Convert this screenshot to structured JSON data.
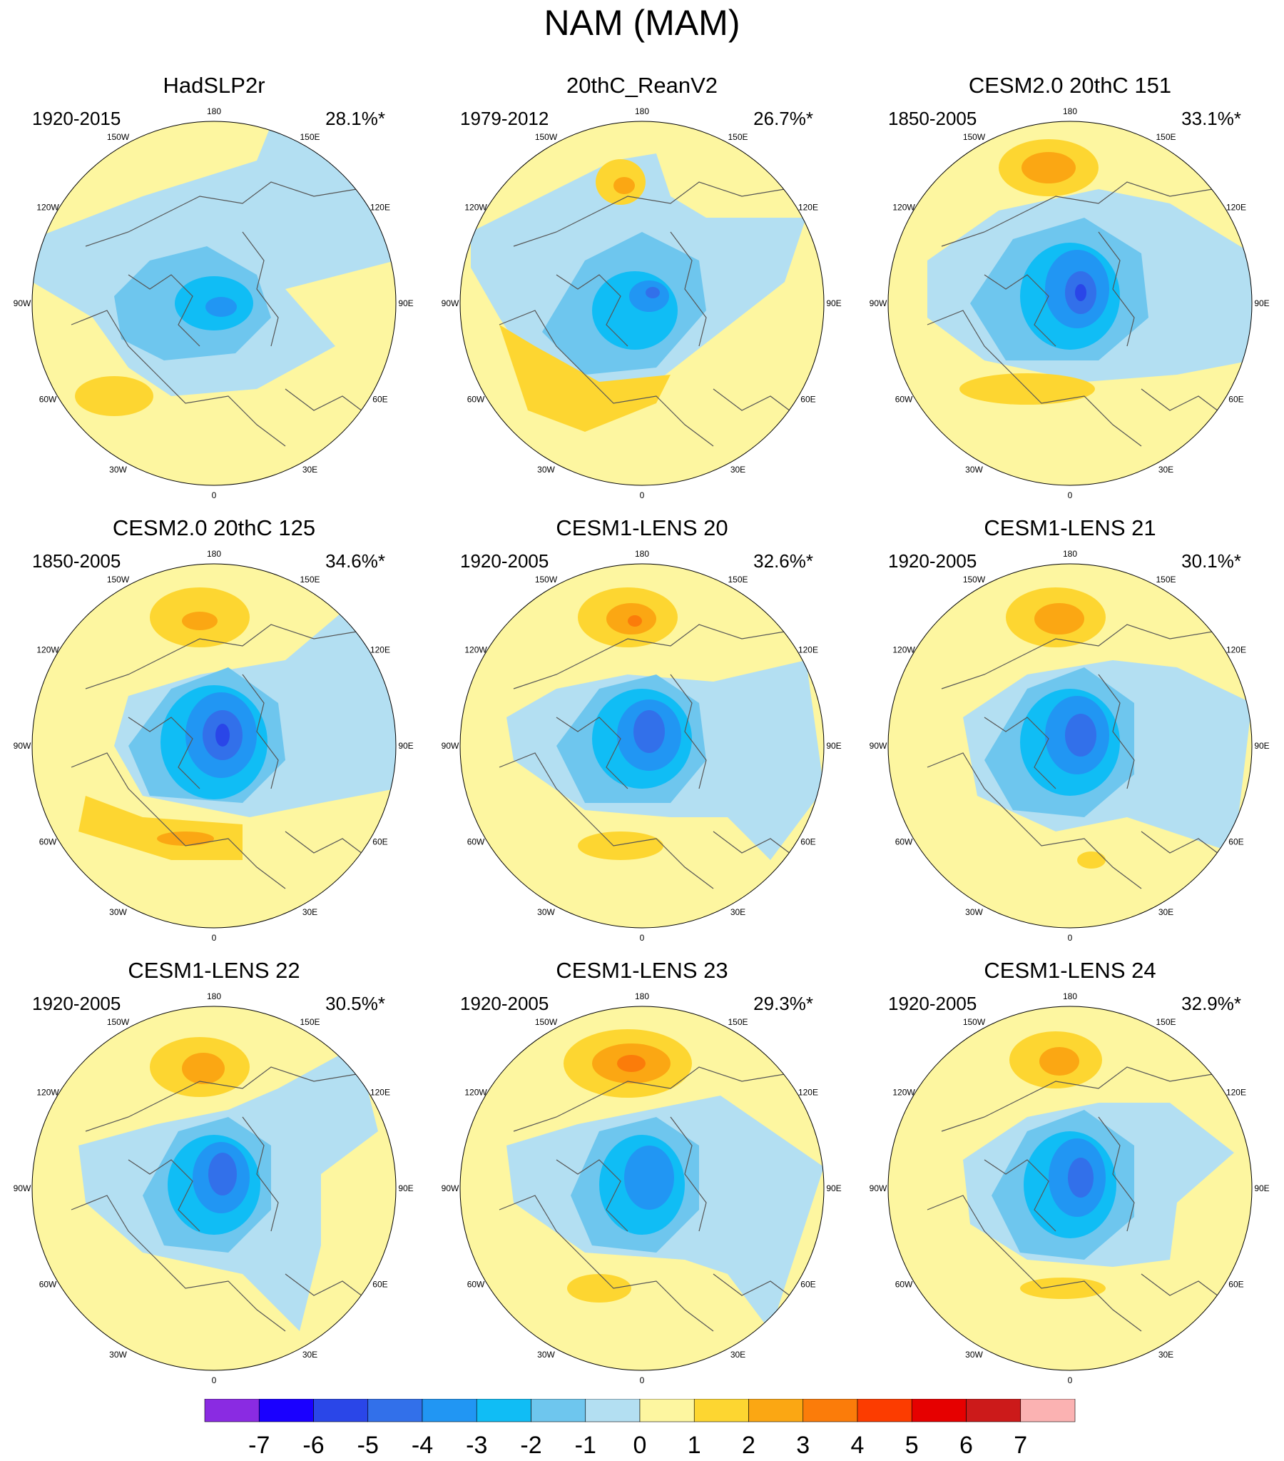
{
  "title": "NAM (MAM)",
  "panels": [
    {
      "title": "HadSLP2r",
      "period": "1920-2015",
      "variance": "28.1%*"
    },
    {
      "title": "20thC_ReanV2",
      "period": "1979-2012",
      "variance": "26.7%*"
    },
    {
      "title": "CESM2.0 20thC 151",
      "period": "1850-2005",
      "variance": "33.1%*"
    },
    {
      "title": "CESM2.0 20thC 125",
      "period": "1850-2005",
      "variance": "34.6%*"
    },
    {
      "title": "CESM1-LENS 20",
      "period": "1920-2005",
      "variance": "32.6%*"
    },
    {
      "title": "CESM1-LENS 21",
      "period": "1920-2005",
      "variance": "30.1%*"
    },
    {
      "title": "CESM1-LENS 22",
      "period": "1920-2005",
      "variance": "30.5%*"
    },
    {
      "title": "CESM1-LENS 23",
      "period": "1920-2005",
      "variance": "29.3%*"
    },
    {
      "title": "CESM1-LENS 24",
      "period": "1920-2005",
      "variance": "32.9%*"
    }
  ],
  "longitude_labels": [
    "180",
    "150E",
    "120E",
    "90E",
    "60E",
    "30E",
    "0",
    "30W",
    "60W",
    "90W",
    "120W",
    "150W"
  ],
  "colorbar": {
    "labels": [
      "-7",
      "-6",
      "-5",
      "-4",
      "-3",
      "-2",
      "-1",
      "0",
      "1",
      "2",
      "3",
      "4",
      "5",
      "6",
      "7"
    ],
    "colors": [
      "#8a2be2",
      "#1a00ff",
      "#2a46e8",
      "#3270ea",
      "#2196f3",
      "#10bdf5",
      "#6ec6ee",
      "#b3dff2",
      "#fdf6a0",
      "#fdd631",
      "#fba713",
      "#fb7c0a",
      "#fc3c00",
      "#e60000",
      "#cc1a1a",
      "#fbb2b2"
    ]
  },
  "map_colors": {
    "land_outline": "#555555",
    "neg1": "#b3dff2",
    "neg2": "#6ec6ee",
    "neg3": "#10bdf5",
    "neg4": "#2196f3",
    "neg5": "#3270ea",
    "neg6": "#2a46e8",
    "pos0": "#fdf6a0",
    "pos1": "#fdd631",
    "pos2": "#fba713",
    "pos3": "#fb7c0a"
  }
}
